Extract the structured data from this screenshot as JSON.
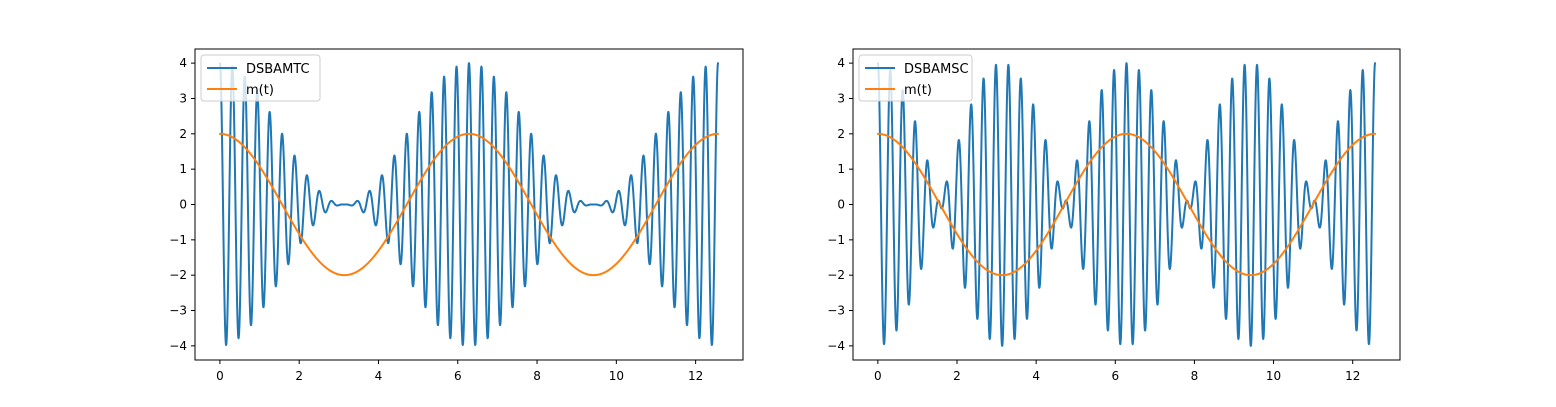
{
  "chart_data": [
    {
      "type": "line",
      "title": "",
      "xlabel": "",
      "ylabel": "",
      "xlim": [
        -0.628,
        13.195
      ],
      "ylim": [
        -4.4,
        4.4
      ],
      "xticks": [
        0,
        2,
        4,
        6,
        8,
        10,
        12
      ],
      "yticks": [
        -4,
        -3,
        -2,
        -1,
        0,
        1,
        2,
        3,
        4
      ],
      "grid": false,
      "legend_position": "upper-left",
      "series": [
        {
          "name": "DSBAMTC",
          "color": "#1f77b4",
          "description_formula": "2*(1+cos(t))*cos(20*pi*t/pi)",
          "x_range": [
            0,
            12.566
          ],
          "modulation": "conventional",
          "carrier_cycles_per_unit": 3.1831,
          "amplitude_peak": 4
        },
        {
          "name": "m(t)",
          "color": "#ff7f0e",
          "x_range": [
            0,
            12.566
          ],
          "amplitude": 2,
          "shape": "2*cos(t)"
        }
      ]
    },
    {
      "type": "line",
      "title": "",
      "xlabel": "",
      "ylabel": "",
      "xlim": [
        -0.628,
        13.195
      ],
      "ylim": [
        -4.4,
        4.4
      ],
      "xticks": [
        0,
        2,
        4,
        6,
        8,
        10,
        12
      ],
      "yticks": [
        -4,
        -3,
        -2,
        -1,
        0,
        1,
        2,
        3,
        4
      ],
      "grid": false,
      "legend_position": "upper-left",
      "series": [
        {
          "name": "DSBAMSC",
          "color": "#1f77b4",
          "x_range": [
            0,
            12.566
          ],
          "modulation": "suppressed-carrier",
          "carrier_cycles_per_unit": 3.1831,
          "amplitude_peak": 4
        },
        {
          "name": "m(t)",
          "color": "#ff7f0e",
          "x_range": [
            0,
            12.566
          ],
          "amplitude": 2,
          "shape": "2*cos(t)"
        }
      ]
    }
  ]
}
